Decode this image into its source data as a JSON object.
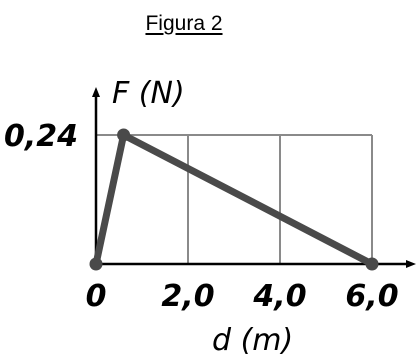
{
  "figure": {
    "caption": "Figura 2"
  },
  "chart_data": {
    "type": "line",
    "title": "",
    "ylabel": "F (N)",
    "xlabel": "d (m)",
    "x": [
      0,
      0.6,
      6.0
    ],
    "y": [
      0,
      0.24,
      0
    ],
    "xlim": [
      0,
      7.0
    ],
    "ylim": [
      0,
      0.24
    ],
    "x_ticks": [
      0,
      2.0,
      4.0,
      6.0
    ],
    "x_tick_labels": [
      "0",
      "2,0",
      "4,0",
      "6,0"
    ],
    "y_ticks": [
      0.24
    ],
    "y_tick_labels": [
      "0,24"
    ],
    "grid": true,
    "line_color": "#4a4a4a",
    "grid_color": "#8a8a8a"
  }
}
